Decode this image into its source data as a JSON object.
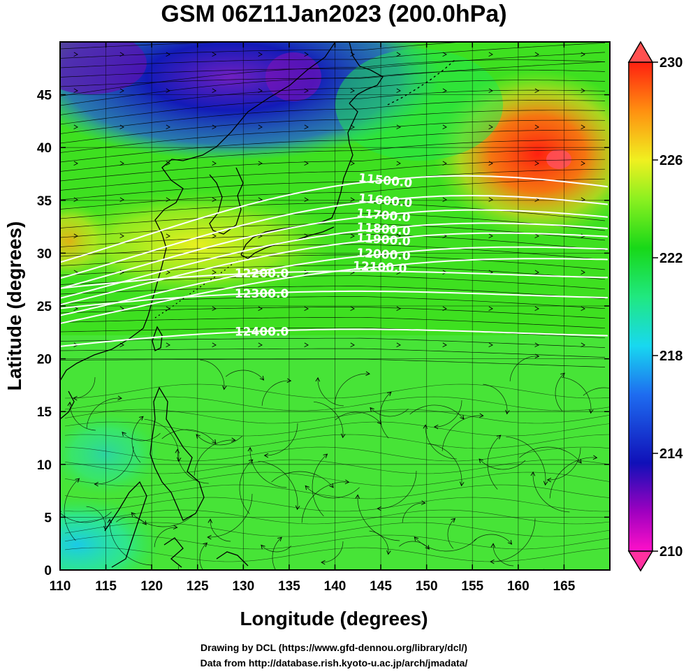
{
  "title": "GSM 06Z11Jan2023 (200.0hPa)",
  "x_axis": {
    "label": "Longitude (degrees)",
    "range": [
      110,
      170
    ],
    "ticks": [
      110,
      115,
      120,
      125,
      130,
      135,
      140,
      145,
      150,
      155,
      160,
      165
    ]
  },
  "y_axis": {
    "label": "Latitude  (degrees)",
    "range": [
      0,
      50
    ],
    "ticks": [
      0,
      5,
      10,
      15,
      20,
      25,
      30,
      35,
      40,
      45
    ]
  },
  "colorbar": {
    "ticks": [
      "230",
      "226",
      "222",
      "218",
      "214",
      "210"
    ],
    "min": 210,
    "max": 230,
    "colors": [
      "#ff10c8",
      "#8a00c0",
      "#1010c0",
      "#1e6cf0",
      "#18d8f0",
      "#20e860",
      "#18d818",
      "#8cf020",
      "#f0f020",
      "#ff9010",
      "#ff2010"
    ]
  },
  "contours": [
    {
      "label": "11500.0",
      "lon": 145.5,
      "lat": 36.9
    },
    {
      "label": "11600.0",
      "lon": 145.5,
      "lat": 35.0
    },
    {
      "label": "11700.0",
      "lon": 145.3,
      "lat": 33.6
    },
    {
      "label": "11800.0",
      "lon": 145.3,
      "lat": 32.3
    },
    {
      "label": "11900.0",
      "lon": 145.3,
      "lat": 31.3
    },
    {
      "label": "12000.0",
      "lon": 145.3,
      "lat": 29.9
    },
    {
      "label": "12100.0",
      "lon": 144.9,
      "lat": 28.7
    },
    {
      "label": "12200.0",
      "lon": 132.0,
      "lat": 28.1
    },
    {
      "label": "12300.0",
      "lon": 132.0,
      "lat": 26.2
    },
    {
      "label": "12400.0",
      "lon": 132.0,
      "lat": 22.6
    }
  ],
  "credits": [
    "Drawing by DCL (https://www.gfd-dennou.org/library/dcl/)",
    "Data from http://database.rish.kyoto-u.ac.jp/arch/jmadata/"
  ]
}
